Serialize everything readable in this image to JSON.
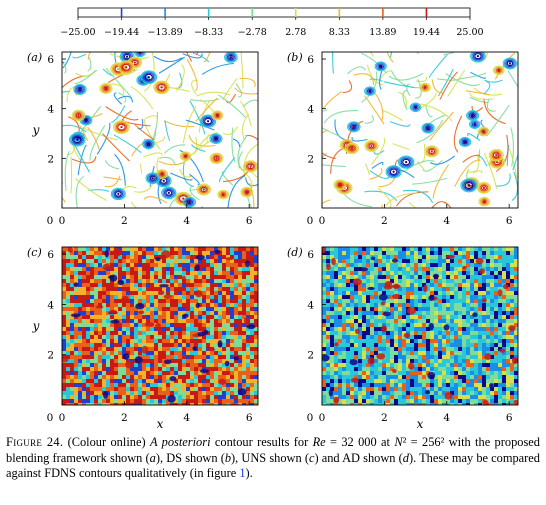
{
  "figure": {
    "colorbar": {
      "ticks": [
        "−25.00",
        "−19.44",
        "−13.89",
        "−8.33",
        "−2.78",
        "2.78",
        "8.33",
        "13.89",
        "19.44",
        "25.00"
      ],
      "colors": [
        "#0b0b8a",
        "#1f3fd0",
        "#1a8ee6",
        "#28c8d8",
        "#7ddc9a",
        "#d6e04a",
        "#f2b32a",
        "#e8601a",
        "#c81a14"
      ]
    },
    "panels": [
      {
        "tag": "(a)",
        "kind": "contour",
        "density": 0.55
      },
      {
        "tag": "(b)",
        "kind": "contour",
        "density": 0.45
      },
      {
        "tag": "(c)",
        "kind": "field",
        "bias": 0.62
      },
      {
        "tag": "(d)",
        "kind": "field",
        "bias": 0.38
      }
    ],
    "x_ticks": [
      "0",
      "2",
      "4",
      "6"
    ],
    "y_ticks": [
      "2",
      "4",
      "6"
    ],
    "xlabel": "x",
    "ylabel": "y"
  },
  "caption": {
    "label": "Figure 24.",
    "part1": " (Colour online) ",
    "italic1": "A posteriori",
    "part2": " contour results for ",
    "re_symbol": "Re",
    "part3": " = 32 000  at ",
    "n_symbol": "N",
    "part4": "² = 256² with the proposed blending framework shown (",
    "a": "a",
    "part5": "), DS shown (",
    "b": "b",
    "part6": "), UNS shown (",
    "c": "c",
    "part7": ") and AD shown (",
    "d": "d",
    "part8": "). These may be compared against FDNS contours qualitatively (in figure ",
    "ref": "1",
    "part9": ")."
  }
}
